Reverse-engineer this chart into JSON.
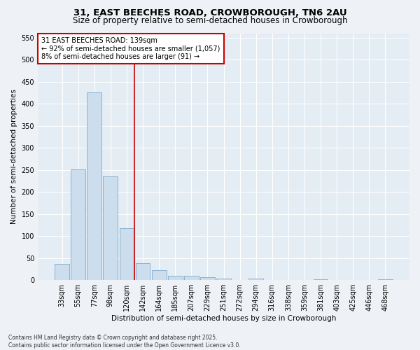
{
  "title": "31, EAST BEECHES ROAD, CROWBOROUGH, TN6 2AU",
  "subtitle": "Size of property relative to semi-detached houses in Crowborough",
  "xlabel": "Distribution of semi-detached houses by size in Crowborough",
  "ylabel": "Number of semi-detached properties",
  "categories": [
    "33sqm",
    "55sqm",
    "77sqm",
    "98sqm",
    "120sqm",
    "142sqm",
    "164sqm",
    "185sqm",
    "207sqm",
    "229sqm",
    "251sqm",
    "272sqm",
    "294sqm",
    "316sqm",
    "338sqm",
    "359sqm",
    "381sqm",
    "403sqm",
    "425sqm",
    "446sqm",
    "468sqm"
  ],
  "values": [
    37,
    251,
    425,
    235,
    118,
    38,
    22,
    10,
    10,
    6,
    4,
    0,
    3,
    0,
    0,
    0,
    2,
    0,
    0,
    0,
    2
  ],
  "bar_color": "#ccdded",
  "bar_edge_color": "#7aabcf",
  "vline_color": "#cc0000",
  "annotation_text": "31 EAST BEECHES ROAD: 139sqm\n← 92% of semi-detached houses are smaller (1,057)\n8% of semi-detached houses are larger (91) →",
  "annotation_box_color": "#cc0000",
  "ylim": [
    0,
    560
  ],
  "yticks": [
    0,
    50,
    100,
    150,
    200,
    250,
    300,
    350,
    400,
    450,
    500,
    550
  ],
  "footer": "Contains HM Land Registry data © Crown copyright and database right 2025.\nContains public sector information licensed under the Open Government Licence v3.0.",
  "bg_color": "#eef2f6",
  "plot_bg_color": "#e4ecf4",
  "grid_color": "#ffffff",
  "title_fontsize": 9.5,
  "subtitle_fontsize": 8.5,
  "axis_label_fontsize": 7.5,
  "tick_fontsize": 7,
  "annotation_fontsize": 7,
  "footer_fontsize": 5.5
}
